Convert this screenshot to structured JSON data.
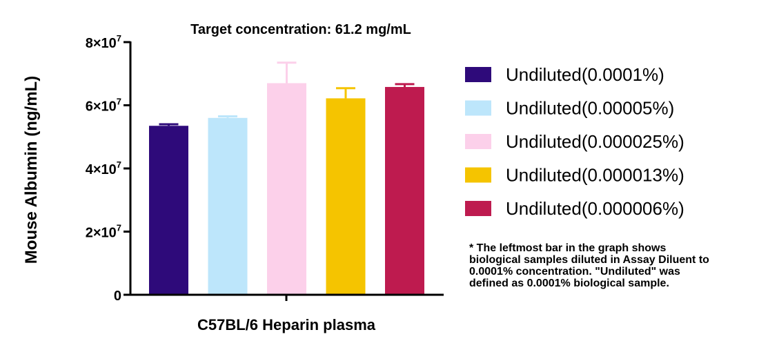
{
  "chart_data": {
    "type": "bar",
    "title": "Target concentration: 61.2 mg/mL",
    "xlabel": "C57BL/6 Heparin plasma",
    "ylabel": "Mouse Albumin (ng/mL)",
    "ylim": [
      0,
      80000000
    ],
    "yticks": [
      {
        "value": 0,
        "label": "0",
        "exp": ""
      },
      {
        "value": 20000000,
        "label": "2×10",
        "exp": "7"
      },
      {
        "value": 40000000,
        "label": "4×10",
        "exp": "7"
      },
      {
        "value": 60000000,
        "label": "6×10",
        "exp": "7"
      },
      {
        "value": 80000000,
        "label": "8×10",
        "exp": "7"
      }
    ],
    "grid": false,
    "legend_position": "right",
    "series": [
      {
        "name": "Undiluted(0.0001%)",
        "value": 53500000,
        "error": 500000,
        "color": "#2e0a7a"
      },
      {
        "name": "Undiluted(0.00005%)",
        "value": 56000000,
        "error": 500000,
        "color": "#bde6fb"
      },
      {
        "name": "Undiluted(0.000025%)",
        "value": 67000000,
        "error": 6500000,
        "color": "#fcd0ea"
      },
      {
        "name": "Undiluted(0.000013%)",
        "value": 62200000,
        "error": 3200000,
        "color": "#f5c400"
      },
      {
        "name": "Undiluted(0.000006%)",
        "value": 65800000,
        "error": 900000,
        "color": "#be1b4f"
      }
    ]
  },
  "footnote": "* The leftmost bar in the graph shows\nbiological samples diluted in Assay Diluent to\n0.0001% concentration. \"Undiluted\" was\ndefined as 0.0001% biological sample."
}
